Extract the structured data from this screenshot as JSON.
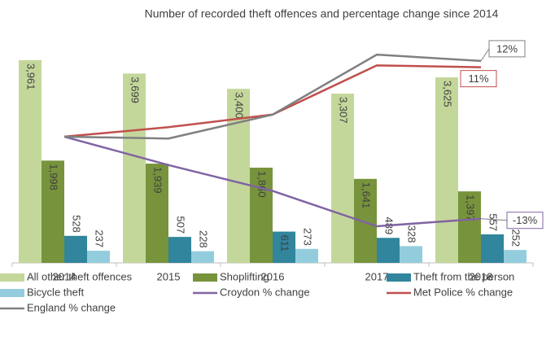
{
  "chart_data": {
    "type": "bar",
    "title": "Number of recorded theft offences and percentage change since 2014",
    "categories": [
      "2014",
      "2015",
      "2016",
      "2017",
      "2018"
    ],
    "ylim": [
      0,
      4500
    ],
    "y2lim": [
      -20,
      16.5
    ],
    "legend": "bottom",
    "series": [
      {
        "name": "All other theft offences",
        "type": "bar",
        "color": "#c4d79b",
        "values": [
          3961,
          3699,
          3400,
          3307,
          3625
        ],
        "value_labels": [
          "3,961",
          "3,699",
          "3,400",
          "3,307",
          "3,625"
        ]
      },
      {
        "name": "Shoplifting",
        "type": "bar",
        "color": "#77933c",
        "values": [
          1998,
          1939,
          1860,
          1641,
          1397
        ],
        "value_labels": [
          "1,998",
          "1,939",
          "1,860",
          "1,641",
          "1,397"
        ]
      },
      {
        "name": "Theft from the person",
        "type": "bar",
        "color": "#31859c",
        "values": [
          528,
          507,
          611,
          489,
          557
        ]
      },
      {
        "name": "Bicycle theft",
        "type": "bar",
        "color": "#93cddd",
        "values": [
          237,
          228,
          273,
          328,
          252
        ]
      },
      {
        "name": "Croydon % change",
        "type": "line",
        "axis": "y2",
        "color": "#8064a2",
        "values": [
          0,
          -4.5,
          -8.6,
          -14.2,
          -13
        ],
        "value_labels": [
          null,
          null,
          null,
          null,
          "-13%"
        ]
      },
      {
        "name": "Met Police % change",
        "type": "line",
        "axis": "y2",
        "color": "#c0504d",
        "values": [
          0,
          1.5,
          3.5,
          11.3,
          11
        ],
        "value_labels": [
          null,
          null,
          null,
          null,
          "11%"
        ]
      },
      {
        "name": "England % change",
        "type": "line",
        "axis": "y2",
        "color": "#808080",
        "values": [
          0,
          -0.3,
          3.5,
          13,
          12
        ],
        "value_labels": [
          null,
          null,
          null,
          null,
          "12%"
        ]
      }
    ]
  }
}
